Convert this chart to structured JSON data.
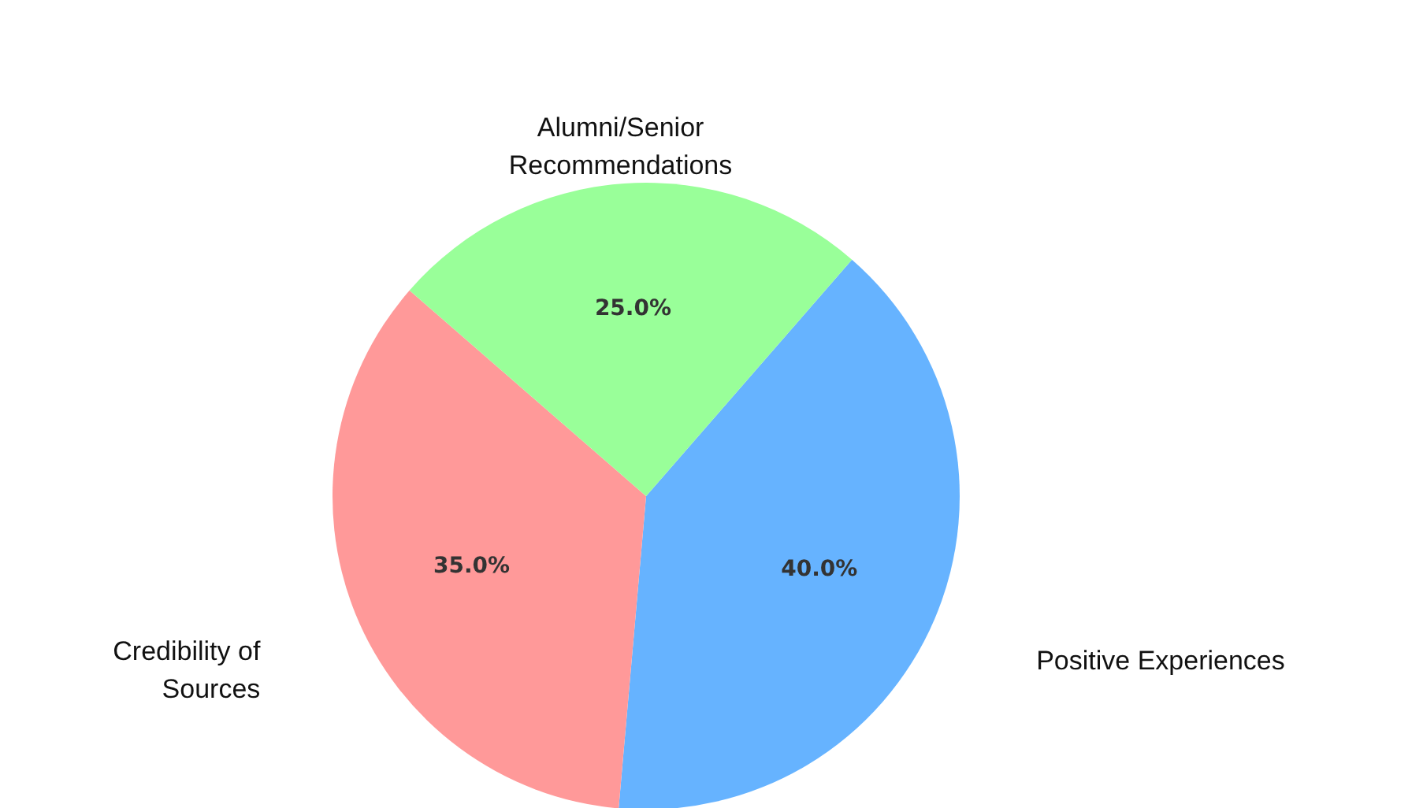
{
  "chart_data": {
    "type": "pie",
    "categories": [
      "Positive Experiences",
      "Credibility of\nSources",
      "Alumni/Senior\nRecommendations"
    ],
    "values": [
      40,
      35,
      25
    ],
    "colors": [
      "#66b3ff",
      "#ff9999",
      "#99ff99"
    ],
    "value_labels": [
      "40.0%",
      "35.0%",
      "25.0%"
    ]
  }
}
